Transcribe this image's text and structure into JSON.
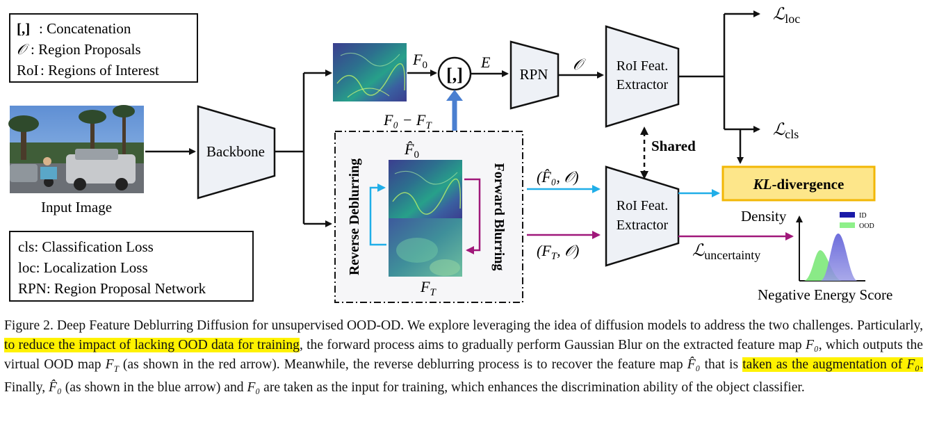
{
  "legend_top": [
    {
      "symbol": "[,]",
      "text": ": Concatenation"
    },
    {
      "symbol": "𝒪",
      "text": ": Region Proposals"
    },
    {
      "symbol": "RoI",
      "text": ": Regions of Interest"
    }
  ],
  "legend_bottom": [
    "cls: Classification Loss",
    "loc: Localization Loss",
    "RPN: Region Proposal Network"
  ],
  "input_label": "Input Image",
  "backbone_label": "Backbone",
  "concat_symbol": "[,]",
  "labels": {
    "f0": "F",
    "f0_sub": "0",
    "e": "E",
    "o": "𝒪",
    "rpn": "RPN",
    "roi_line1": "RoI Feat.",
    "roi_line2": "Extractor",
    "f0_minus_ft": "F₀ − F",
    "ft_sub": "T",
    "fhat": "F̂",
    "ft": "F",
    "reverse": "Reverse Deblurring",
    "forward": "Forward Blurring",
    "shared": "Shared",
    "pair_hat": "(F̂₀, 𝒪)",
    "pair_ft": "(F",
    "pair_ft_end": ", 𝒪)",
    "kl": "KL",
    "kl_rest": "-divergence",
    "loss_sym": "ℒ",
    "loc": "loc",
    "cls": "cls",
    "uncertainty": "uncertainty",
    "density": "Density",
    "energy": "Negative Energy Score",
    "legend_id": "ID",
    "legend_ood": "OOD"
  },
  "colors": {
    "blue_arrow": "#20aee8",
    "purple_arrow": "#a0187a",
    "concat_arrow": "#4a7fd0",
    "kl_fill": "#fde68a",
    "kl_border": "#f2b705",
    "id_curve": "#6f6fd8",
    "ood_curve": "#7de87a",
    "trap_fill": "#eef1f6",
    "highlight": "#fff200"
  },
  "caption": {
    "p1": "Figure 2. Deep Feature Deblurring Diffusion for unsupervised OOD-OD. We explore leveraging the idea of diffusion models to address the two challenges. Particularly, ",
    "hl1": "to reduce the impact of lacking OOD data for training",
    "p2": ", the forward process aims to gradually perform Gaussian Blur on the extracted feature map ",
    "p3": ", which outputs the virtual OOD map ",
    "p4": " (as shown in the red arrow). Meanwhile, the reverse deblurring process is to recover the feature map ",
    "p5": " that is ",
    "hl2": "taken as the augmentation of ",
    "hl2_end": ".",
    "p6": " Finally, ",
    "p7": " (as shown in the blue arrow) and ",
    "p8": " are taken as the input for training, which enhances the discrimination ability of the object classifier.",
    "f0": "F₀",
    "ft": "F",
    "ft_sub": "T",
    "fhat0": "F̂₀"
  }
}
